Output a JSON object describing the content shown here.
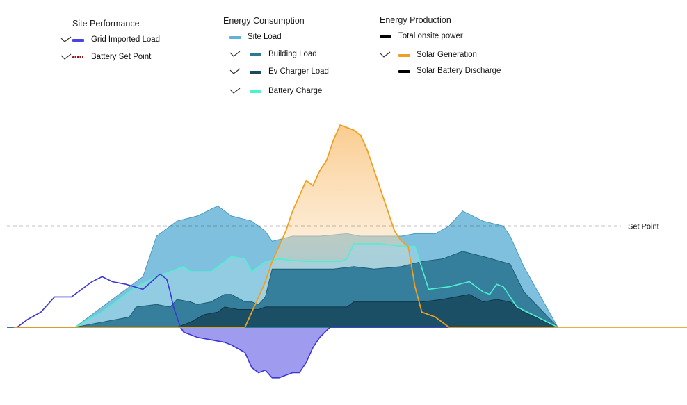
{
  "chart_data": {
    "type": "area",
    "title": "",
    "xlabel": "",
    "ylabel": "",
    "ylim": [
      -12,
      40
    ],
    "x_points": 100,
    "legend": {
      "site_performance": {
        "title": "Site Performance",
        "items": [
          {
            "label": "Grid Imported Load",
            "checked": true,
            "color": "#4b45e0",
            "style": "solid"
          },
          {
            "label": "Battery Set Point",
            "checked": true,
            "color": "#8b1a1a",
            "style": "dotted"
          }
        ]
      },
      "energy_consumption": {
        "title": "Energy Consumption",
        "items": [
          {
            "label": "Site Load",
            "checked": false,
            "color": "#5fb3d6",
            "style": "solid"
          },
          {
            "label": "Building Load",
            "checked": true,
            "color": "#2d7893",
            "style": "solid"
          },
          {
            "label": "Ev Charger Load",
            "checked": true,
            "color": "#1a4a63",
            "style": "solid"
          },
          {
            "label": "Battery Charge",
            "checked": true,
            "color": "#4ef0d0",
            "style": "solid"
          }
        ]
      },
      "energy_production": {
        "title": "Energy Production",
        "items": [
          {
            "label": "Total onsite power",
            "checked": false,
            "color": "#000000",
            "style": "solid"
          },
          {
            "label": "Solar Generation",
            "checked": true,
            "color": "#f0a020",
            "style": "solid"
          },
          {
            "label": "Solar Battery Discharge",
            "checked": false,
            "color": "#000000",
            "style": "solid"
          }
        ]
      }
    },
    "set_point": {
      "label": "Set Point",
      "value": 20
    },
    "series": [
      {
        "name": "Site Load",
        "color": "#5fb3d6",
        "points": [
          [
            10,
            0
          ],
          [
            20,
            10
          ],
          [
            22,
            18
          ],
          [
            25,
            21
          ],
          [
            28,
            22
          ],
          [
            31,
            24
          ],
          [
            33,
            22
          ],
          [
            36,
            21
          ],
          [
            38,
            19
          ],
          [
            39,
            17
          ],
          [
            42,
            18
          ],
          [
            46,
            18
          ],
          [
            50,
            18.5
          ],
          [
            52,
            18
          ],
          [
            55,
            18
          ],
          [
            58,
            18
          ],
          [
            60,
            18.5
          ],
          [
            63,
            18.5
          ],
          [
            65,
            20
          ],
          [
            67,
            23
          ],
          [
            70,
            21
          ],
          [
            73,
            20
          ],
          [
            74,
            18
          ],
          [
            76,
            12
          ],
          [
            81,
            0
          ]
        ]
      },
      {
        "name": "Battery Charge",
        "color": "#4ef0d0",
        "points": [
          [
            10,
            0
          ],
          [
            14,
            3
          ],
          [
            19,
            8
          ],
          [
            22,
            10
          ],
          [
            24,
            11
          ],
          [
            26,
            12
          ],
          [
            27,
            11
          ],
          [
            30,
            11
          ],
          [
            32,
            13
          ],
          [
            33,
            14
          ],
          [
            35,
            13.5
          ],
          [
            36,
            11
          ],
          [
            38,
            13
          ],
          [
            40,
            13.5
          ],
          [
            44,
            13
          ],
          [
            47,
            13
          ],
          [
            49,
            13
          ],
          [
            50,
            13.5
          ],
          [
            51,
            16.5
          ],
          [
            55,
            16.5
          ],
          [
            58,
            16
          ],
          [
            60,
            16
          ],
          [
            62,
            7.5
          ],
          [
            65,
            8
          ],
          [
            68,
            9
          ],
          [
            70,
            7
          ],
          [
            71,
            6.5
          ],
          [
            72,
            8.5
          ],
          [
            73,
            8
          ],
          [
            75,
            4
          ],
          [
            78,
            2
          ],
          [
            81,
            0
          ]
        ]
      },
      {
        "name": "Building Load",
        "color": "#2d7893",
        "points": [
          [
            10,
            0
          ],
          [
            18,
            2
          ],
          [
            19,
            4
          ],
          [
            22,
            4.5
          ],
          [
            24,
            4
          ],
          [
            25,
            5.5
          ],
          [
            27,
            5
          ],
          [
            28,
            4.5
          ],
          [
            30,
            5
          ],
          [
            32,
            6.5
          ],
          [
            33,
            6.5
          ],
          [
            35,
            5
          ],
          [
            36,
            5
          ],
          [
            37,
            4.5
          ],
          [
            38,
            6
          ],
          [
            39,
            11.5
          ],
          [
            42,
            11.5
          ],
          [
            45,
            11.5
          ],
          [
            48,
            11.5
          ],
          [
            51,
            12
          ],
          [
            54,
            11.5
          ],
          [
            58,
            12
          ],
          [
            61,
            13
          ],
          [
            64,
            13.5
          ],
          [
            67,
            15
          ],
          [
            70,
            14
          ],
          [
            74,
            12.5
          ],
          [
            76,
            7
          ],
          [
            81,
            0
          ]
        ]
      },
      {
        "name": "Ev Charger Load",
        "color": "#1a4a63",
        "points": [
          [
            10,
            0
          ],
          [
            22,
            0
          ],
          [
            25,
            0
          ],
          [
            27,
            1
          ],
          [
            29,
            2.5
          ],
          [
            31,
            3
          ],
          [
            32,
            4
          ],
          [
            34,
            3.5
          ],
          [
            37,
            3.5
          ],
          [
            38,
            4
          ],
          [
            39,
            4
          ],
          [
            43,
            4
          ],
          [
            47,
            4
          ],
          [
            50,
            4
          ],
          [
            51,
            5
          ],
          [
            55,
            5
          ],
          [
            58,
            5
          ],
          [
            61,
            5
          ],
          [
            64,
            5.5
          ],
          [
            66,
            6
          ],
          [
            68,
            6.5
          ],
          [
            70,
            5
          ],
          [
            72,
            5.5
          ],
          [
            74,
            5
          ],
          [
            76,
            3
          ],
          [
            81,
            0
          ]
        ]
      },
      {
        "name": "Grid Imported Load",
        "color": "#4b45e0",
        "points": [
          [
            1.5,
            0
          ],
          [
            3,
            1.5
          ],
          [
            5,
            3
          ],
          [
            7,
            6
          ],
          [
            9.5,
            6
          ],
          [
            11,
            7.5
          ],
          [
            12.5,
            9
          ],
          [
            14,
            10
          ],
          [
            15.5,
            9
          ],
          [
            17.5,
            8.5
          ],
          [
            20,
            7.5
          ],
          [
            22.5,
            10.5
          ],
          [
            23.5,
            9.5
          ],
          [
            24,
            7
          ],
          [
            24.5,
            4
          ],
          [
            25,
            2
          ],
          [
            25.5,
            0
          ],
          [
            26,
            -1
          ],
          [
            27,
            -1.5
          ],
          [
            28,
            -2
          ],
          [
            30,
            -2.5
          ],
          [
            32,
            -3
          ],
          [
            33,
            -3.5
          ],
          [
            35,
            -5
          ],
          [
            36,
            -8
          ],
          [
            37,
            -9
          ],
          [
            38,
            -8.5
          ],
          [
            39,
            -10
          ],
          [
            40,
            -10
          ],
          [
            41,
            -9.5
          ],
          [
            42,
            -9
          ],
          [
            43,
            -9
          ],
          [
            44,
            -7
          ],
          [
            45,
            -4
          ],
          [
            46,
            -2
          ],
          [
            47.5,
            0
          ],
          [
            81,
            0
          ]
        ]
      },
      {
        "name": "Solar Generation",
        "color": "#f0a020",
        "points": [
          [
            1,
            0
          ],
          [
            35,
            0
          ],
          [
            36,
            3
          ],
          [
            37,
            6
          ],
          [
            38,
            9
          ],
          [
            39,
            13
          ],
          [
            40,
            16
          ],
          [
            41,
            19
          ],
          [
            42,
            23
          ],
          [
            43,
            26
          ],
          [
            44,
            29
          ],
          [
            45,
            28
          ],
          [
            46,
            31
          ],
          [
            47,
            33
          ],
          [
            48,
            37
          ],
          [
            49,
            40
          ],
          [
            50,
            39.5
          ],
          [
            51,
            39
          ],
          [
            52,
            38
          ],
          [
            53,
            35
          ],
          [
            54,
            31
          ],
          [
            55,
            27
          ],
          [
            56,
            23
          ],
          [
            57,
            19
          ],
          [
            58,
            17
          ],
          [
            59,
            16
          ],
          [
            60,
            8
          ],
          [
            61,
            3
          ],
          [
            63,
            2
          ],
          [
            65,
            0
          ],
          [
            100,
            0
          ]
        ]
      }
    ]
  }
}
